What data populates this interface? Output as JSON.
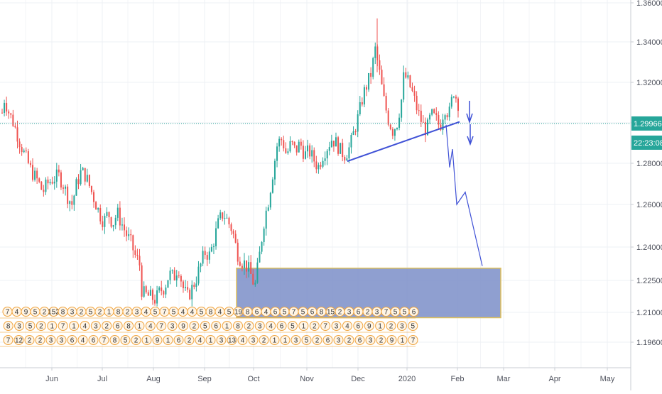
{
  "chart_data": {
    "type": "candlestick",
    "x_axis_labels": [
      "Jun",
      "Jul",
      "Aug",
      "Sep",
      "Oct",
      "Nov",
      "Dec",
      "2020",
      "Feb",
      "Mar",
      "Apr",
      "May"
    ],
    "y_axis_ticks": [
      "1.36000",
      "1.34000",
      "1.32000",
      "1.30000",
      "1.28000",
      "1.26000",
      "1.24000",
      "1.22500",
      "1.21000",
      "1.19600"
    ],
    "ylim": [
      1.192,
      1.36
    ],
    "last_price": 1.29966,
    "price_label": "1.29966",
    "countdown_label": "22:23:08",
    "grid": true,
    "colors": {
      "up": "#26a69a",
      "down": "#ef5350",
      "box_fill": "#7b8ec8",
      "box_border": "#e0c15a",
      "line": "#3f51d6",
      "price": "#26a69a"
    },
    "candles_close_path": [
      [
        0,
        1.305
      ],
      [
        1,
        1.312
      ],
      [
        3,
        1.305
      ],
      [
        5,
        1.3
      ],
      [
        8,
        1.29
      ],
      [
        10,
        1.284
      ],
      [
        13,
        1.276
      ],
      [
        16,
        1.271
      ],
      [
        18,
        1.266
      ],
      [
        20,
        1.27
      ],
      [
        22,
        1.272
      ],
      [
        25,
        1.274
      ],
      [
        27,
        1.27
      ],
      [
        29,
        1.264
      ],
      [
        31,
        1.26
      ],
      [
        33,
        1.27
      ],
      [
        35,
        1.276
      ],
      [
        37,
        1.274
      ],
      [
        39,
        1.268
      ],
      [
        41,
        1.262
      ],
      [
        43,
        1.256
      ],
      [
        45,
        1.252
      ],
      [
        47,
        1.256
      ],
      [
        49,
        1.251
      ],
      [
        51,
        1.256
      ],
      [
        53,
        1.251
      ],
      [
        55,
        1.246
      ],
      [
        57,
        1.242
      ],
      [
        59,
        1.236
      ],
      [
        61,
        1.232
      ],
      [
        62,
        1.219
      ],
      [
        64,
        1.218
      ],
      [
        66,
        1.217
      ],
      [
        68,
        1.216
      ],
      [
        70,
        1.22
      ],
      [
        72,
        1.222
      ],
      [
        74,
        1.228
      ],
      [
        76,
        1.226
      ],
      [
        78,
        1.232
      ],
      [
        80,
        1.222
      ],
      [
        82,
        1.217
      ],
      [
        84,
        1.221
      ],
      [
        86,
        1.226
      ],
      [
        88,
        1.232
      ],
      [
        90,
        1.238
      ],
      [
        92,
        1.236
      ],
      [
        94,
        1.244
      ],
      [
        96,
        1.252
      ],
      [
        98,
        1.256
      ],
      [
        100,
        1.252
      ],
      [
        102,
        1.248
      ],
      [
        104,
        1.238
      ],
      [
        106,
        1.234
      ],
      [
        108,
        1.232
      ],
      [
        110,
        1.228
      ],
      [
        112,
        1.222
      ],
      [
        114,
        1.236
      ],
      [
        116,
        1.252
      ],
      [
        118,
        1.262
      ],
      [
        120,
        1.276
      ],
      [
        122,
        1.29
      ],
      [
        124,
        1.292
      ],
      [
        126,
        1.284
      ],
      [
        128,
        1.29
      ],
      [
        130,
        1.286
      ],
      [
        132,
        1.29
      ],
      [
        134,
        1.284
      ],
      [
        136,
        1.286
      ],
      [
        138,
        1.282
      ],
      [
        140,
        1.278
      ],
      [
        142,
        1.284
      ],
      [
        144,
        1.288
      ],
      [
        146,
        1.292
      ],
      [
        148,
        1.29
      ],
      [
        150,
        1.286
      ],
      [
        152,
        1.284
      ],
      [
        154,
        1.288
      ],
      [
        156,
        1.296
      ],
      [
        158,
        1.304
      ],
      [
        160,
        1.314
      ],
      [
        162,
        1.32
      ],
      [
        164,
        1.326
      ],
      [
        165,
        1.338
      ],
      [
        167,
        1.326
      ],
      [
        169,
        1.312
      ],
      [
        171,
        1.302
      ],
      [
        173,
        1.296
      ],
      [
        175,
        1.3
      ],
      [
        177,
        1.312
      ],
      [
        178,
        1.324
      ],
      [
        180,
        1.32
      ],
      [
        182,
        1.314
      ],
      [
        184,
        1.306
      ],
      [
        186,
        1.3
      ],
      [
        188,
        1.296
      ],
      [
        190,
        1.304
      ],
      [
        192,
        1.302
      ],
      [
        194,
        1.298
      ],
      [
        196,
        1.308
      ],
      [
        198,
        1.304
      ],
      [
        200,
        1.316
      ],
      [
        202,
        1.31
      ],
      [
        203,
        1.3
      ]
    ],
    "support_box": {
      "x_from": "Sep",
      "x_to": "Mar",
      "y_top": 1.2305,
      "y_bottom": 1.2075
    },
    "trend_line": {
      "from": [
        1.281,
        "Nov-Dec"
      ],
      "to": [
        1.3005,
        "Feb"
      ]
    },
    "projection": [
      1.299,
      1.278,
      1.287,
      1.26,
      1.266,
      1.2315
    ],
    "calendar_rows": [
      "7 4 9 5 2 152 8 3 2 5 2 1 8 2 3 4 5 7 5 4 4 5 8 4 5 19 8 6 4 6 5 7 5 6 8 15 2 3 6 2 3 7 5 5 6",
      "8 3 5 2 1 7 1 4 3 2 6 8 1 4 7 3 9 2 5 6 1 8 2 3 4 6 5 1 2 7 3 4 6 9 1 2 3 5",
      "7 12 2 2 3 3 6 4 6 7 8 5 2 1 9 1 6 2 4 1 3 13 4 3 2 1 1 3 5 2 6 3 2 6 3 2 9 1 7"
    ]
  }
}
